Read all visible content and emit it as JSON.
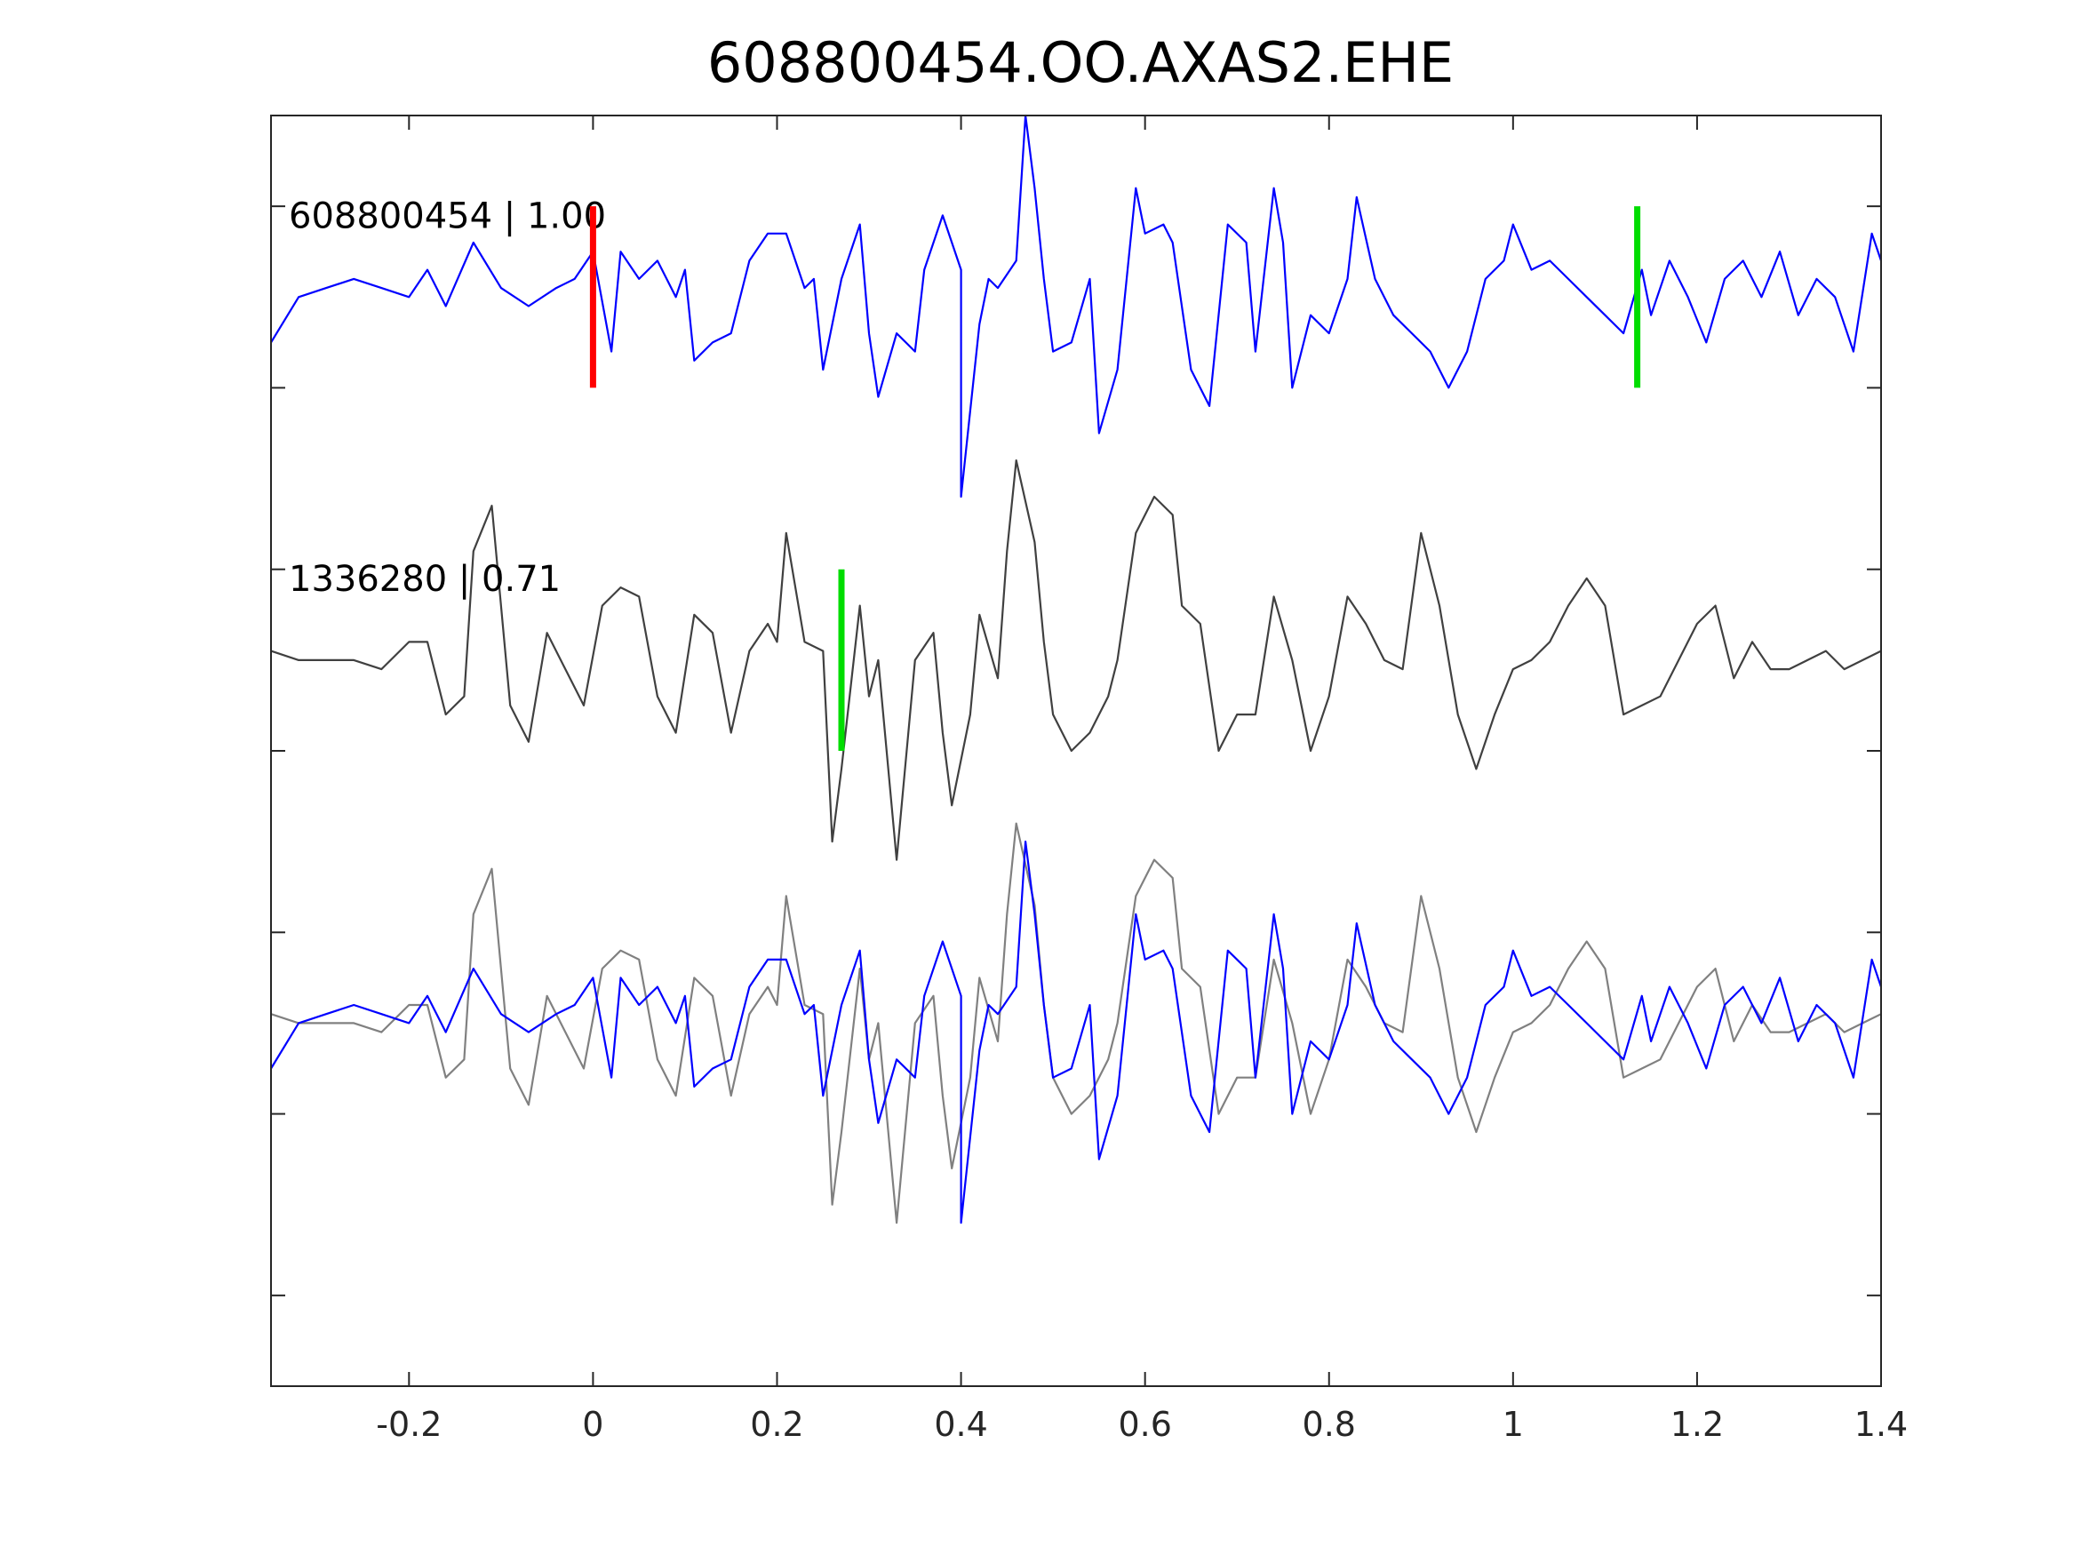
{
  "chart_data": {
    "type": "line",
    "title": "608800454.OO.AXAS2.EHE",
    "xlabel": "",
    "ylabel": "",
    "xlim": [
      -0.35,
      1.4
    ],
    "x_ticks": [
      -0.2,
      0,
      0.2,
      0.4,
      0.6,
      0.8,
      1,
      1.2,
      1.4
    ],
    "x_tick_labels": [
      "-0.2",
      "0",
      "0.2",
      "0.4",
      "0.6",
      "0.8",
      "1",
      "1.2",
      "1.4"
    ],
    "y_tick_count": 7,
    "grid": false,
    "colors": {
      "target_trace": "#0000ff",
      "template_trace": "#404040",
      "template_overlay": "#808080",
      "p_pick": "#ff0000",
      "s_pick": "#00dd00",
      "axes": "#262626"
    },
    "traces": [
      {
        "label": "608800454 | 1.00",
        "color": "#0000ff",
        "offset": 2,
        "points": [
          [
            -0.35,
            -0.25
          ],
          [
            -0.32,
            0.0
          ],
          [
            -0.29,
            0.05
          ],
          [
            -0.26,
            0.1
          ],
          [
            -0.23,
            0.05
          ],
          [
            -0.2,
            0.0
          ],
          [
            -0.18,
            0.15
          ],
          [
            -0.16,
            -0.05
          ],
          [
            -0.13,
            0.3
          ],
          [
            -0.1,
            0.05
          ],
          [
            -0.07,
            -0.05
          ],
          [
            -0.04,
            0.05
          ],
          [
            -0.02,
            0.1
          ],
          [
            0.0,
            0.25
          ],
          [
            0.02,
            -0.3
          ],
          [
            0.03,
            0.25
          ],
          [
            0.05,
            0.1
          ],
          [
            0.07,
            0.2
          ],
          [
            0.09,
            0.0
          ],
          [
            0.1,
            0.15
          ],
          [
            0.11,
            -0.35
          ],
          [
            0.13,
            -0.25
          ],
          [
            0.15,
            -0.2
          ],
          [
            0.17,
            0.2
          ],
          [
            0.19,
            0.35
          ],
          [
            0.21,
            0.35
          ],
          [
            0.23,
            0.05
          ],
          [
            0.24,
            0.1
          ],
          [
            0.25,
            -0.4
          ],
          [
            0.27,
            0.1
          ],
          [
            0.29,
            0.4
          ],
          [
            0.3,
            -0.2
          ],
          [
            0.31,
            -0.55
          ],
          [
            0.33,
            -0.2
          ],
          [
            0.35,
            -0.3
          ],
          [
            0.36,
            0.15
          ],
          [
            0.38,
            0.45
          ],
          [
            0.4,
            0.15
          ],
          [
            0.4,
            -1.1
          ],
          [
            0.42,
            -0.15
          ],
          [
            0.43,
            0.1
          ],
          [
            0.44,
            0.05
          ],
          [
            0.46,
            0.2
          ],
          [
            0.47,
            1.0
          ],
          [
            0.48,
            0.6
          ],
          [
            0.49,
            0.1
          ],
          [
            0.5,
            -0.3
          ],
          [
            0.52,
            -0.25
          ],
          [
            0.54,
            0.1
          ],
          [
            0.55,
            -0.75
          ],
          [
            0.57,
            -0.4
          ],
          [
            0.59,
            0.6
          ],
          [
            0.6,
            0.35
          ],
          [
            0.62,
            0.4
          ],
          [
            0.63,
            0.3
          ],
          [
            0.65,
            -0.4
          ],
          [
            0.67,
            -0.6
          ],
          [
            0.69,
            0.4
          ],
          [
            0.71,
            0.3
          ],
          [
            0.72,
            -0.3
          ],
          [
            0.74,
            0.6
          ],
          [
            0.75,
            0.3
          ],
          [
            0.76,
            -0.5
          ],
          [
            0.78,
            -0.1
          ],
          [
            0.8,
            -0.2
          ],
          [
            0.82,
            0.1
          ],
          [
            0.83,
            0.55
          ],
          [
            0.85,
            0.1
          ],
          [
            0.87,
            -0.1
          ],
          [
            0.89,
            -0.2
          ],
          [
            0.91,
            -0.3
          ],
          [
            0.93,
            -0.5
          ],
          [
            0.95,
            -0.3
          ],
          [
            0.97,
            0.1
          ],
          [
            0.99,
            0.2
          ],
          [
            1.0,
            0.4
          ],
          [
            1.02,
            0.15
          ],
          [
            1.04,
            0.2
          ],
          [
            1.06,
            0.1
          ],
          [
            1.08,
            0.0
          ],
          [
            1.1,
            -0.1
          ],
          [
            1.12,
            -0.2
          ],
          [
            1.14,
            0.15
          ],
          [
            1.15,
            -0.1
          ],
          [
            1.17,
            0.2
          ],
          [
            1.19,
            0.0
          ],
          [
            1.21,
            -0.25
          ],
          [
            1.23,
            0.1
          ],
          [
            1.25,
            0.2
          ],
          [
            1.27,
            0.0
          ],
          [
            1.29,
            0.25
          ],
          [
            1.31,
            -0.1
          ],
          [
            1.33,
            0.1
          ],
          [
            1.35,
            0.0
          ],
          [
            1.37,
            -0.3
          ],
          [
            1.39,
            0.35
          ],
          [
            1.4,
            0.2
          ]
        ]
      },
      {
        "label": "1336280 | 0.71",
        "color": "#404040",
        "offset": 0,
        "points": [
          [
            -0.35,
            0.05
          ],
          [
            -0.32,
            0.0
          ],
          [
            -0.29,
            0.0
          ],
          [
            -0.26,
            0.0
          ],
          [
            -0.23,
            -0.05
          ],
          [
            -0.2,
            0.1
          ],
          [
            -0.18,
            0.1
          ],
          [
            -0.16,
            -0.3
          ],
          [
            -0.14,
            -0.2
          ],
          [
            -0.13,
            0.6
          ],
          [
            -0.11,
            0.85
          ],
          [
            -0.09,
            -0.25
          ],
          [
            -0.07,
            -0.45
          ],
          [
            -0.05,
            0.15
          ],
          [
            -0.03,
            -0.05
          ],
          [
            -0.01,
            -0.25
          ],
          [
            0.01,
            0.3
          ],
          [
            0.03,
            0.4
          ],
          [
            0.05,
            0.35
          ],
          [
            0.07,
            -0.2
          ],
          [
            0.09,
            -0.4
          ],
          [
            0.11,
            0.25
          ],
          [
            0.13,
            0.15
          ],
          [
            0.15,
            -0.4
          ],
          [
            0.17,
            0.05
          ],
          [
            0.19,
            0.2
          ],
          [
            0.2,
            0.1
          ],
          [
            0.21,
            0.7
          ],
          [
            0.23,
            0.1
          ],
          [
            0.25,
            0.05
          ],
          [
            0.26,
            -1.0
          ],
          [
            0.27,
            -0.6
          ],
          [
            0.29,
            0.3
          ],
          [
            0.3,
            -0.2
          ],
          [
            0.31,
            0.0
          ],
          [
            0.33,
            -1.1
          ],
          [
            0.35,
            0.0
          ],
          [
            0.37,
            0.15
          ],
          [
            0.38,
            -0.4
          ],
          [
            0.39,
            -0.8
          ],
          [
            0.41,
            -0.3
          ],
          [
            0.42,
            0.25
          ],
          [
            0.44,
            -0.1
          ],
          [
            0.45,
            0.6
          ],
          [
            0.46,
            1.1
          ],
          [
            0.48,
            0.65
          ],
          [
            0.49,
            0.1
          ],
          [
            0.5,
            -0.3
          ],
          [
            0.52,
            -0.5
          ],
          [
            0.54,
            -0.4
          ],
          [
            0.56,
            -0.2
          ],
          [
            0.57,
            0.0
          ],
          [
            0.59,
            0.7
          ],
          [
            0.61,
            0.9
          ],
          [
            0.63,
            0.8
          ],
          [
            0.64,
            0.3
          ],
          [
            0.66,
            0.2
          ],
          [
            0.68,
            -0.5
          ],
          [
            0.7,
            -0.3
          ],
          [
            0.72,
            -0.3
          ],
          [
            0.74,
            0.35
          ],
          [
            0.76,
            0.0
          ],
          [
            0.78,
            -0.5
          ],
          [
            0.8,
            -0.2
          ],
          [
            0.82,
            0.35
          ],
          [
            0.84,
            0.2
          ],
          [
            0.86,
            0.0
          ],
          [
            0.88,
            -0.05
          ],
          [
            0.9,
            0.7
          ],
          [
            0.92,
            0.3
          ],
          [
            0.94,
            -0.3
          ],
          [
            0.96,
            -0.6
          ],
          [
            0.98,
            -0.3
          ],
          [
            1.0,
            -0.05
          ],
          [
            1.02,
            0.0
          ],
          [
            1.04,
            0.1
          ],
          [
            1.06,
            0.3
          ],
          [
            1.08,
            0.45
          ],
          [
            1.1,
            0.3
          ],
          [
            1.12,
            -0.3
          ],
          [
            1.14,
            -0.25
          ],
          [
            1.16,
            -0.2
          ],
          [
            1.18,
            0.0
          ],
          [
            1.2,
            0.2
          ],
          [
            1.22,
            0.3
          ],
          [
            1.24,
            -0.1
          ],
          [
            1.26,
            0.1
          ],
          [
            1.28,
            -0.05
          ],
          [
            1.3,
            -0.05
          ],
          [
            1.32,
            0.0
          ],
          [
            1.34,
            0.05
          ],
          [
            1.36,
            -0.05
          ],
          [
            1.38,
            0.0
          ],
          [
            1.4,
            0.05
          ]
        ]
      }
    ],
    "picks": [
      {
        "trace": 0,
        "x": 0.0,
        "type": "P",
        "color": "#ff0000"
      },
      {
        "trace": 0,
        "x": 1.135,
        "type": "S",
        "color": "#00dd00"
      },
      {
        "trace": 1,
        "x": 0.27,
        "type": "S",
        "color": "#00dd00"
      }
    ],
    "overlay": {
      "offset": -2,
      "series": [
        {
          "source_trace": 1,
          "color": "#808080"
        },
        {
          "source_trace": 0,
          "color": "#0000ff"
        }
      ]
    }
  }
}
